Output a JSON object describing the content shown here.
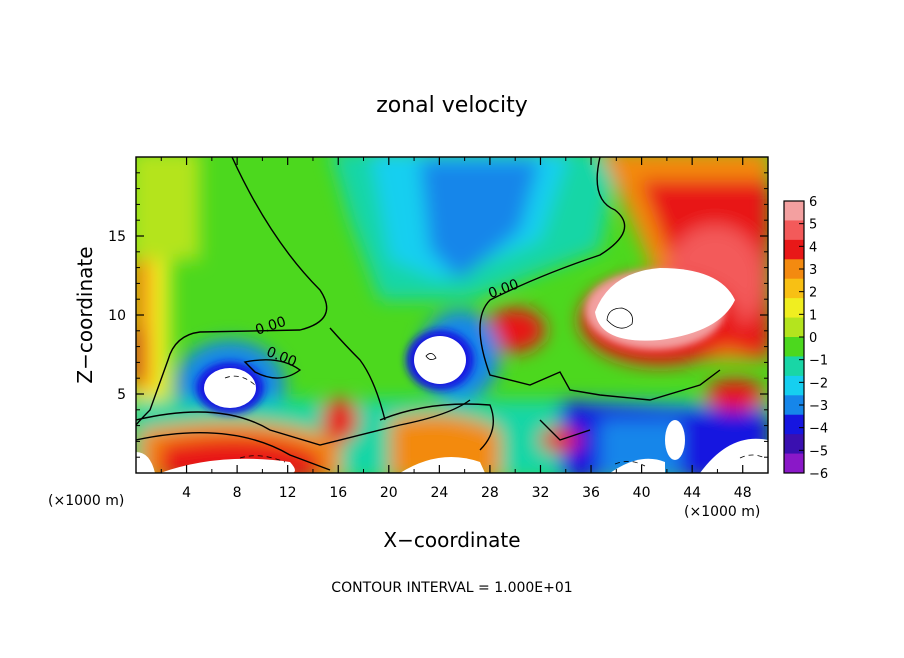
{
  "chart_data": {
    "type": "heatmap",
    "title": "zonal velocity",
    "xlabel": "X−coordinate",
    "ylabel": "Z−coordinate",
    "x_unit_left": "(×1000 m)",
    "x_unit_right": "(×1000 m)",
    "footer": "CONTOUR INTERVAL = 1.000E+01",
    "xlim": [
      0,
      50
    ],
    "ylim": [
      0,
      20
    ],
    "x_ticks": [
      4,
      8,
      12,
      16,
      20,
      24,
      28,
      32,
      36,
      40,
      44,
      48
    ],
    "x_tick_labels": [
      "4",
      "8",
      "12",
      "16",
      "20",
      "24",
      "28",
      "32",
      "36",
      "40",
      "44",
      "48"
    ],
    "y_ticks": [
      5,
      10,
      15
    ],
    "y_tick_labels": [
      "5",
      "10",
      "15"
    ],
    "contour_labels": [
      "0.00",
      "0.00",
      "0.00"
    ],
    "colorbar": {
      "min": -6,
      "max": 6,
      "levels": [
        6,
        5,
        4,
        3,
        2,
        1,
        0,
        -1,
        -2,
        -3,
        -4,
        -5,
        -6
      ],
      "level_labels": [
        "6",
        "5",
        "4",
        "3",
        "2",
        "1",
        "0",
        "−1",
        "−2",
        "−3",
        "−4",
        "−5",
        "−6"
      ],
      "colors": [
        "#f3a0a0",
        "#f35a5a",
        "#e81818",
        "#f38a10",
        "#f8c014",
        "#f0ee20",
        "#b4e41e",
        "#4cd81e",
        "#19d6a6",
        "#16cff0",
        "#1686ea",
        "#1616e0",
        "#3a10b0",
        "#8a18c8"
      ]
    }
  }
}
